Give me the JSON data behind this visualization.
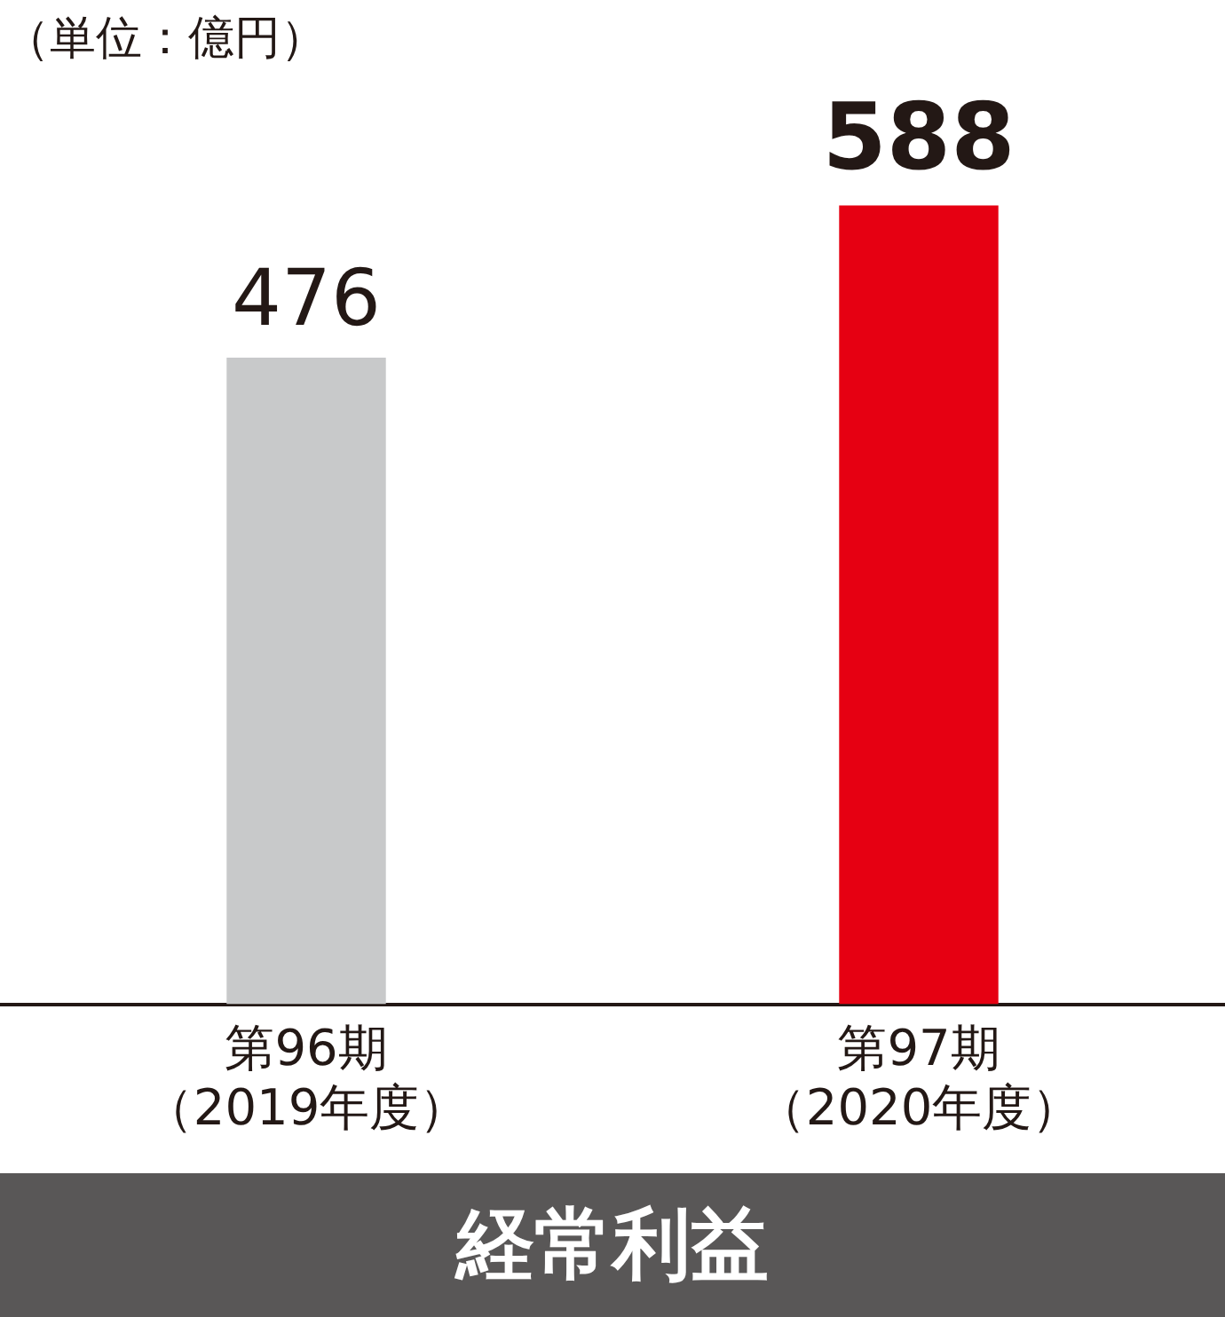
{
  "chart_data": {
    "type": "bar",
    "title": "経常利益",
    "ylabel": "（単位：億円）",
    "categories": [
      "第96期（2019年度）",
      "第97期（2020年度）"
    ],
    "values": [
      476,
      588
    ],
    "colors": [
      "#c8c9ca",
      "#e60012"
    ],
    "data_labels": true,
    "legend": false,
    "grid": false
  }
}
